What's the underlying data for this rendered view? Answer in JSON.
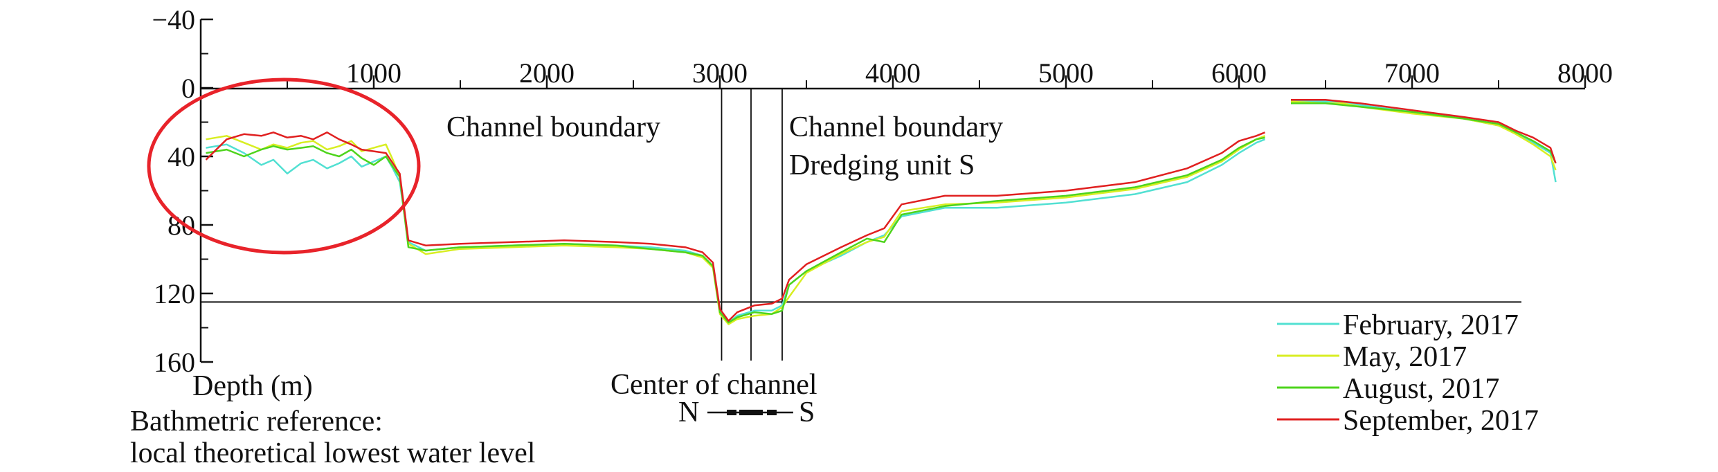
{
  "chart_data": {
    "type": "line",
    "xlim": [
      0,
      8000
    ],
    "ylim": [
      -40,
      160
    ],
    "y_inverted": true,
    "x_ticks": [
      {
        "value": 1000,
        "label": "1000"
      },
      {
        "value": 2000,
        "label": "2000"
      },
      {
        "value": 3000,
        "label": "3000"
      },
      {
        "value": 4000,
        "label": "4000"
      },
      {
        "value": 5000,
        "label": "5000"
      },
      {
        "value": 6000,
        "label": "6000"
      },
      {
        "value": 7000,
        "label": "7000"
      },
      {
        "value": 8000,
        "label": "8000"
      }
    ],
    "y_ticks": [
      {
        "value": -40,
        "label": "−40"
      },
      {
        "value": 0,
        "label": "0"
      },
      {
        "value": 40,
        "label": "40"
      },
      {
        "value": 80,
        "label": "80"
      },
      {
        "value": 120,
        "label": "120"
      },
      {
        "value": 160,
        "label": "160"
      }
    ],
    "ylabel": "Depth (m)",
    "reference_note": [
      "Bathmetric reference:",
      "local theoretical lowest water level"
    ],
    "annotations": {
      "channel_boundary_left": "Channel boundary",
      "channel_boundary_right": "Channel boundary",
      "dredging_unit": "Dredging unit S",
      "center_of_channel": "Center of channel",
      "compass_north": "N",
      "compass_south": "S"
    },
    "reference_depth": 125,
    "channel_lines_x": [
      3010,
      3180,
      3360
    ],
    "highlight": {
      "shape": "ellipse",
      "color": "#e8232a",
      "center": [
        510,
        45
      ]
    },
    "series": [
      {
        "name": "February, 2017",
        "color": "#52e0d2",
        "x": [
          30,
          150,
          250,
          350,
          420,
          500,
          580,
          650,
          730,
          800,
          870,
          930,
          1000,
          1070,
          1110,
          1150,
          1200,
          1300,
          1500,
          1800,
          2100,
          2400,
          2600,
          2800,
          2900,
          2960,
          3000,
          3050,
          3100,
          3200,
          3300,
          3360,
          3400,
          3500,
          3700,
          3850,
          3950,
          4050,
          4300,
          4600,
          5000,
          5400,
          5700,
          5900,
          6000,
          6100,
          6150,
          null,
          6300,
          6500,
          6600,
          6700,
          7000,
          7300,
          7500,
          7600,
          7700,
          7800,
          7830
        ],
        "y": [
          35,
          33,
          38,
          45,
          42,
          50,
          44,
          42,
          47,
          44,
          40,
          46,
          43,
          40,
          47,
          55,
          90,
          95,
          93,
          92,
          91,
          92,
          93,
          95,
          98,
          104,
          130,
          137,
          133,
          130,
          130,
          127,
          115,
          107,
          98,
          90,
          86,
          75,
          70,
          70,
          67,
          62,
          55,
          45,
          38,
          32,
          30,
          null,
          8,
          8,
          8,
          10,
          14,
          18,
          22,
          26,
          32,
          38,
          55
        ]
      },
      {
        "name": "May, 2017",
        "color": "#d8ee22",
        "x": [
          30,
          150,
          250,
          350,
          420,
          500,
          580,
          650,
          730,
          800,
          870,
          930,
          1000,
          1070,
          1110,
          1150,
          1200,
          1300,
          1500,
          1800,
          2100,
          2400,
          2600,
          2800,
          2900,
          2960,
          3000,
          3050,
          3100,
          3200,
          3300,
          3360,
          3400,
          3500,
          3700,
          3850,
          3950,
          4050,
          4300,
          4600,
          5000,
          5400,
          5700,
          5900,
          6000,
          6100,
          6150,
          null,
          6300,
          6500,
          6600,
          6700,
          7000,
          7300,
          7500,
          7600,
          7700,
          7800,
          7830
        ],
        "y": [
          30,
          28,
          32,
          36,
          33,
          35,
          32,
          31,
          36,
          34,
          31,
          37,
          35,
          33,
          42,
          52,
          91,
          97,
          94,
          93,
          92,
          93,
          94,
          96,
          99,
          105,
          132,
          138,
          135,
          133,
          132,
          128,
          122,
          108,
          97,
          90,
          87,
          72,
          68,
          67,
          64,
          59,
          52,
          43,
          36,
          30,
          28,
          null,
          8,
          9,
          9,
          11,
          15,
          18,
          22,
          27,
          33,
          40,
          48
        ]
      },
      {
        "name": "August, 2017",
        "color": "#4ed41c",
        "x": [
          30,
          150,
          250,
          350,
          420,
          500,
          580,
          650,
          730,
          800,
          870,
          930,
          1000,
          1070,
          1110,
          1150,
          1200,
          1300,
          1500,
          1800,
          2100,
          2400,
          2600,
          2800,
          2900,
          2960,
          3000,
          3050,
          3100,
          3200,
          3300,
          3360,
          3400,
          3500,
          3700,
          3850,
          3950,
          4050,
          4300,
          4600,
          5000,
          5400,
          5700,
          5900,
          6000,
          6100,
          6150,
          null,
          6300,
          6500,
          6600,
          6700,
          7000,
          7300,
          7500,
          7600,
          7700,
          7800,
          7830
        ],
        "y": [
          38,
          36,
          40,
          36,
          34,
          36,
          35,
          34,
          38,
          40,
          36,
          41,
          45,
          40,
          46,
          52,
          93,
          95,
          93,
          92,
          91,
          92,
          94,
          96,
          98,
          104,
          131,
          137,
          134,
          131,
          132,
          130,
          115,
          107,
          96,
          88,
          90,
          74,
          69,
          66,
          63,
          58,
          51,
          42,
          35,
          30,
          29,
          null,
          9,
          9,
          10,
          11,
          14,
          18,
          21,
          26,
          31,
          37,
          44
        ]
      },
      {
        "name": "September, 2017",
        "color": "#e02020",
        "x": [
          30,
          150,
          250,
          350,
          420,
          500,
          580,
          650,
          730,
          800,
          870,
          930,
          1000,
          1070,
          1110,
          1150,
          1200,
          1300,
          1500,
          1800,
          2100,
          2400,
          2600,
          2800,
          2900,
          2960,
          3000,
          3050,
          3100,
          3200,
          3300,
          3360,
          3400,
          3500,
          3700,
          3850,
          3950,
          4050,
          4300,
          4600,
          5000,
          5400,
          5700,
          5900,
          6000,
          6100,
          6150,
          null,
          6300,
          6500,
          6600,
          6700,
          7000,
          7300,
          7500,
          7600,
          7700,
          7800,
          7830
        ],
        "y": [
          42,
          30,
          27,
          28,
          26,
          29,
          28,
          30,
          26,
          30,
          33,
          36,
          37,
          38,
          44,
          50,
          89,
          92,
          91,
          90,
          89,
          90,
          91,
          93,
          96,
          102,
          129,
          136,
          131,
          127,
          126,
          123,
          112,
          103,
          93,
          86,
          82,
          68,
          63,
          63,
          60,
          55,
          47,
          38,
          31,
          28,
          26,
          null,
          7,
          7,
          8,
          9,
          13,
          17,
          20,
          25,
          29,
          35,
          44
        ]
      }
    ]
  }
}
